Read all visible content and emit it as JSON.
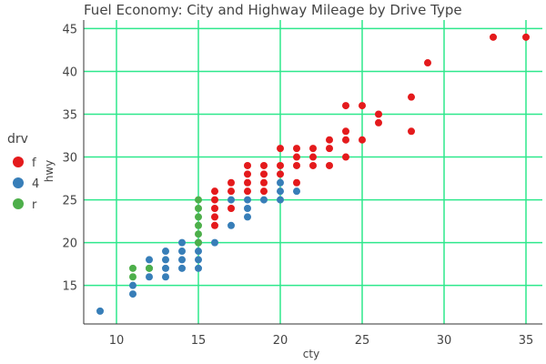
{
  "colors": {
    "grid": "#2ee88c",
    "axis": "#333333",
    "text": "#444444",
    "f": "#e41a1c",
    "4": "#377eb8",
    "r": "#4daf4a"
  },
  "chart_data": {
    "type": "scatter",
    "title": "Fuel Economy: City and Highway Mileage by Drive Type",
    "xlabel": "cty",
    "ylabel": "hwy",
    "xlim": [
      8,
      36
    ],
    "ylim": [
      10.5,
      46
    ],
    "xticks": [
      10,
      15,
      20,
      25,
      30,
      35
    ],
    "yticks": [
      15,
      20,
      25,
      30,
      35,
      40,
      45
    ],
    "grid": true,
    "legend": {
      "title": "drv",
      "position": "left",
      "entries": [
        "f",
        "4",
        "r"
      ]
    },
    "series": [
      {
        "name": "f",
        "points": [
          [
            35,
            44
          ],
          [
            33,
            44
          ],
          [
            29,
            41
          ],
          [
            28,
            37
          ],
          [
            28,
            33
          ],
          [
            26,
            35
          ],
          [
            26,
            34
          ],
          [
            25,
            36
          ],
          [
            25,
            32
          ],
          [
            24,
            36
          ],
          [
            24,
            33
          ],
          [
            24,
            32
          ],
          [
            24,
            30
          ],
          [
            23,
            32
          ],
          [
            23,
            31
          ],
          [
            23,
            29
          ],
          [
            22,
            31
          ],
          [
            22,
            30
          ],
          [
            22,
            29
          ],
          [
            21,
            31
          ],
          [
            21,
            30
          ],
          [
            21,
            29
          ],
          [
            21,
            27
          ],
          [
            20,
            31
          ],
          [
            20,
            29
          ],
          [
            20,
            28
          ],
          [
            19,
            29
          ],
          [
            19,
            28
          ],
          [
            19,
            27
          ],
          [
            19,
            26
          ],
          [
            18,
            29
          ],
          [
            18,
            28
          ],
          [
            18,
            27
          ],
          [
            18,
            26
          ],
          [
            17,
            27
          ],
          [
            17,
            26
          ],
          [
            17,
            24
          ],
          [
            16,
            26
          ],
          [
            16,
            25
          ],
          [
            16,
            24
          ],
          [
            16,
            23
          ],
          [
            16,
            22
          ]
        ]
      },
      {
        "name": "4",
        "points": [
          [
            9,
            12
          ],
          [
            11,
            15
          ],
          [
            11,
            14
          ],
          [
            12,
            17
          ],
          [
            12,
            16
          ],
          [
            12,
            18
          ],
          [
            13,
            19
          ],
          [
            13,
            18
          ],
          [
            13,
            17
          ],
          [
            13,
            16
          ],
          [
            14,
            20
          ],
          [
            14,
            19
          ],
          [
            14,
            18
          ],
          [
            14,
            17
          ],
          [
            15,
            20
          ],
          [
            15,
            19
          ],
          [
            15,
            18
          ],
          [
            15,
            17
          ],
          [
            16,
            20
          ],
          [
            17,
            25
          ],
          [
            17,
            22
          ],
          [
            18,
            25
          ],
          [
            18,
            24
          ],
          [
            18,
            23
          ],
          [
            19,
            25
          ],
          [
            20,
            27
          ],
          [
            20,
            26
          ],
          [
            20,
            25
          ],
          [
            21,
            26
          ]
        ]
      },
      {
        "name": "r",
        "points": [
          [
            11,
            17
          ],
          [
            11,
            16
          ],
          [
            12,
            17
          ],
          [
            15,
            25
          ],
          [
            15,
            24
          ],
          [
            15,
            23
          ],
          [
            15,
            22
          ],
          [
            15,
            21
          ],
          [
            15,
            20
          ]
        ]
      }
    ]
  }
}
